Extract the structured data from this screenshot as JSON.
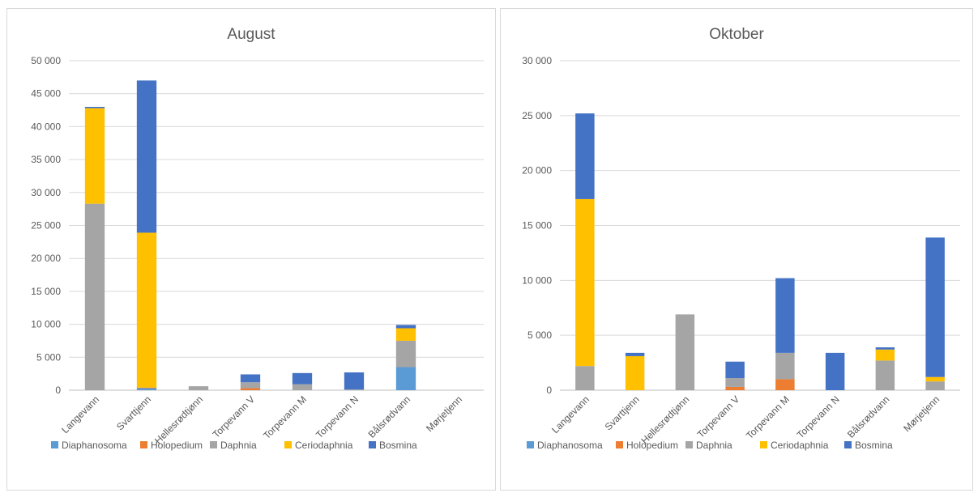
{
  "chart_data": [
    {
      "type": "stacked-bar",
      "title": "August",
      "ylim": [
        0,
        50000
      ],
      "yticks": [
        "0",
        "5 000",
        "10 000",
        "15 000",
        "20 000",
        "25 000",
        "30 000",
        "35 000",
        "40 000",
        "45 000",
        "50 000"
      ],
      "categories": [
        "Langevann",
        "Svarttjenn",
        "Hellesrødtjønn",
        "Torpevann V",
        "Torpevann M",
        "Torpevann N",
        "Bålsrødvann",
        "Mørjetjenn"
      ],
      "series": [
        {
          "name": "Diaphanosoma",
          "color": "#5b9bd5",
          "values": [
            0,
            300,
            0,
            0,
            0,
            0,
            3500,
            0
          ]
        },
        {
          "name": "Holopedium",
          "color": "#ed7d31",
          "values": [
            0,
            100,
            0,
            300,
            0,
            0,
            0,
            0
          ]
        },
        {
          "name": "Daphnia",
          "color": "#a5a5a5",
          "values": [
            28300,
            0,
            600,
            900,
            900,
            100,
            4000,
            0
          ]
        },
        {
          "name": "Ceriodaphnia",
          "color": "#ffc000",
          "values": [
            14500,
            23500,
            0,
            0,
            0,
            0,
            1900,
            0
          ]
        },
        {
          "name": "Bosmina",
          "color": "#4472c4",
          "values": [
            200,
            23100,
            0,
            1200,
            1700,
            2600,
            500,
            0
          ]
        }
      ],
      "grid": true,
      "legend": "bottom"
    },
    {
      "type": "stacked-bar",
      "title": "Oktober",
      "ylim": [
        0,
        30000
      ],
      "yticks": [
        "0",
        "5 000",
        "10 000",
        "15 000",
        "20 000",
        "25 000",
        "30 000"
      ],
      "categories": [
        "Langevann",
        "Svarttjenn",
        "Hellesrødtjønn",
        "Torpevann V",
        "Torpevann M",
        "Torpevann N",
        "Bålsrødvann",
        "Mørjetjenn"
      ],
      "series": [
        {
          "name": "Diaphanosoma",
          "color": "#5b9bd5",
          "values": [
            0,
            0,
            0,
            0,
            0,
            0,
            0,
            0
          ]
        },
        {
          "name": "Holopedium",
          "color": "#ed7d31",
          "values": [
            0,
            0,
            0,
            300,
            1000,
            0,
            0,
            0
          ]
        },
        {
          "name": "Daphnia",
          "color": "#a5a5a5",
          "values": [
            2200,
            0,
            6900,
            800,
            2400,
            0,
            2700,
            800
          ]
        },
        {
          "name": "Ceriodaphnia",
          "color": "#ffc000",
          "values": [
            15200,
            3100,
            0,
            0,
            0,
            0,
            1000,
            400
          ]
        },
        {
          "name": "Bosmina",
          "color": "#4472c4",
          "values": [
            7800,
            300,
            0,
            1500,
            6800,
            3400,
            200,
            12700
          ]
        }
      ],
      "grid": true,
      "legend": "bottom"
    }
  ]
}
